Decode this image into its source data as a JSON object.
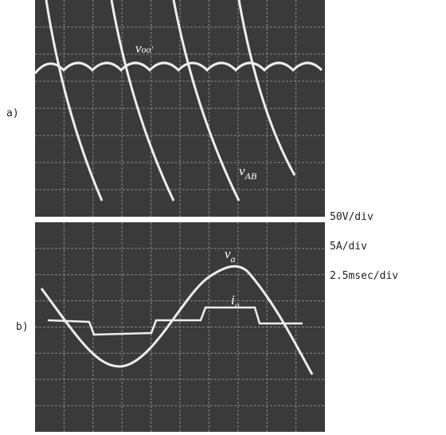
{
  "panels": [
    {
      "label": "a)",
      "traces": [
        {
          "symbol": "v",
          "subscript": "oo'"
        },
        {
          "symbol": "v",
          "subscript": "AB"
        }
      ]
    },
    {
      "label": "b)",
      "traces": [
        {
          "symbol": "v",
          "subscript": "a"
        },
        {
          "symbol": "i",
          "subscript": "a"
        }
      ]
    }
  ],
  "scales": [
    "50V/div",
    "5A/div",
    "2.5msec/div"
  ]
}
